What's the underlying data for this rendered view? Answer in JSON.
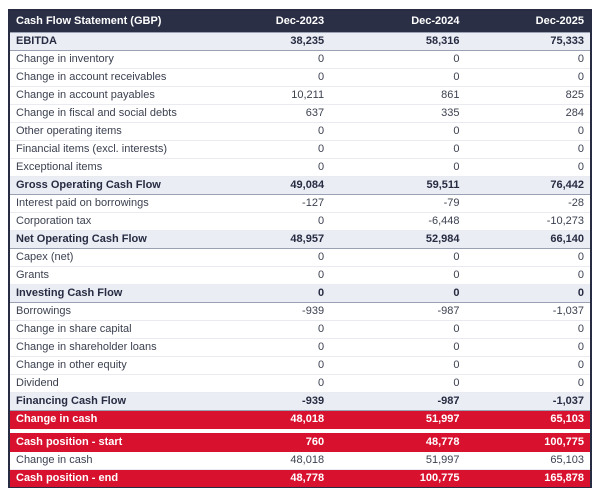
{
  "report": {
    "title": "Cash Flow Statement (GBP)",
    "currency": "GBP",
    "columns": [
      "Dec-2023",
      "Dec-2024",
      "Dec-2025"
    ],
    "colors": {
      "header_bg": "#2a2f45",
      "header_text": "#ffffff",
      "subtotal_bg": "#eaedf4",
      "highlight_bg": "#d8112e",
      "highlight_text": "#ffffff",
      "body_text": "#3c4150",
      "outer_border": "#272c42"
    },
    "rows": [
      {
        "label": "EBITDA",
        "values": [
          "38,235",
          "58,316",
          "75,333"
        ],
        "style": "subtotal"
      },
      {
        "label": "Change in inventory",
        "values": [
          "0",
          "0",
          "0"
        ],
        "style": "normal"
      },
      {
        "label": "Change in account receivables",
        "values": [
          "0",
          "0",
          "0"
        ],
        "style": "normal"
      },
      {
        "label": "Change in account payables",
        "values": [
          "10,211",
          "861",
          "825"
        ],
        "style": "normal"
      },
      {
        "label": "Change in fiscal and social debts",
        "values": [
          "637",
          "335",
          "284"
        ],
        "style": "normal"
      },
      {
        "label": "Other operating items",
        "values": [
          "0",
          "0",
          "0"
        ],
        "style": "normal"
      },
      {
        "label": "Financial items (excl. interests)",
        "values": [
          "0",
          "0",
          "0"
        ],
        "style": "normal"
      },
      {
        "label": "Exceptional items",
        "values": [
          "0",
          "0",
          "0"
        ],
        "style": "normal"
      },
      {
        "label": "Gross Operating Cash Flow",
        "values": [
          "49,084",
          "59,511",
          "76,442"
        ],
        "style": "subtotal"
      },
      {
        "label": "Interest paid on borrowings",
        "values": [
          "-127",
          "-79",
          "-28"
        ],
        "style": "normal"
      },
      {
        "label": "Corporation tax",
        "values": [
          "0",
          "-6,448",
          "-10,273"
        ],
        "style": "normal"
      },
      {
        "label": "Net Operating Cash Flow",
        "values": [
          "48,957",
          "52,984",
          "66,140"
        ],
        "style": "subtotal"
      },
      {
        "label": "Capex (net)",
        "values": [
          "0",
          "0",
          "0"
        ],
        "style": "normal"
      },
      {
        "label": "Grants",
        "values": [
          "0",
          "0",
          "0"
        ],
        "style": "normal"
      },
      {
        "label": "Investing Cash Flow",
        "values": [
          "0",
          "0",
          "0"
        ],
        "style": "subtotal"
      },
      {
        "label": "Borrowings",
        "values": [
          "-939",
          "-987",
          "-1,037"
        ],
        "style": "normal"
      },
      {
        "label": "Change in share capital",
        "values": [
          "0",
          "0",
          "0"
        ],
        "style": "normal"
      },
      {
        "label": "Change in shareholder loans",
        "values": [
          "0",
          "0",
          "0"
        ],
        "style": "normal"
      },
      {
        "label": "Change in other equity",
        "values": [
          "0",
          "0",
          "0"
        ],
        "style": "normal"
      },
      {
        "label": "Dividend",
        "values": [
          "0",
          "0",
          "0"
        ],
        "style": "normal"
      },
      {
        "label": "Financing Cash Flow",
        "values": [
          "-939",
          "-987",
          "-1,037"
        ],
        "style": "subtotal"
      },
      {
        "label": "Change in cash",
        "values": [
          "48,018",
          "51,997",
          "65,103"
        ],
        "style": "highlight"
      },
      {
        "style": "spacer"
      },
      {
        "label": "Cash position - start",
        "values": [
          "760",
          "48,778",
          "100,775"
        ],
        "style": "highlight"
      },
      {
        "label": "Change in cash",
        "values": [
          "48,018",
          "51,997",
          "65,103"
        ],
        "style": "normal"
      },
      {
        "label": "Cash position - end",
        "values": [
          "48,778",
          "100,775",
          "165,878"
        ],
        "style": "highlight"
      }
    ]
  }
}
